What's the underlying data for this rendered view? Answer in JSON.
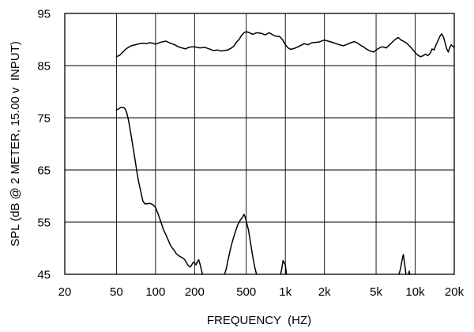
{
  "chart_data": {
    "type": "line",
    "title": "",
    "xlabel": "FREQUENCY  (HZ)",
    "ylabel": "SPL (dB @ 2 METER, 15.00 v  INPUT)",
    "x_scale": "log",
    "xlim": [
      20,
      20000
    ],
    "ylim": [
      45,
      95
    ],
    "grid": true,
    "legend": "none",
    "x_ticks": [
      {
        "value": 20,
        "label": "20"
      },
      {
        "value": 50,
        "label": "50"
      },
      {
        "value": 100,
        "label": "100"
      },
      {
        "value": 200,
        "label": "200"
      },
      {
        "value": 500,
        "label": "500"
      },
      {
        "value": 1000,
        "label": "1k"
      },
      {
        "value": 2000,
        "label": "2k"
      },
      {
        "value": 5000,
        "label": "5k"
      },
      {
        "value": 10000,
        "label": "10k"
      },
      {
        "value": 20000,
        "label": "20k"
      }
    ],
    "y_ticks": [
      {
        "value": 45,
        "label": "45"
      },
      {
        "value": 55,
        "label": "55"
      },
      {
        "value": 65,
        "label": "65"
      },
      {
        "value": 75,
        "label": "75"
      },
      {
        "value": 85,
        "label": "85"
      },
      {
        "value": 95,
        "label": "95"
      }
    ],
    "line_color": "#000000",
    "series": [
      {
        "points": [
          [
            50,
            86.7
          ],
          [
            53,
            87.0
          ],
          [
            56,
            87.6
          ],
          [
            60,
            88.3
          ],
          [
            65,
            88.8
          ],
          [
            70,
            89.0
          ],
          [
            75,
            89.2
          ],
          [
            80,
            89.3
          ],
          [
            85,
            89.2
          ],
          [
            90,
            89.4
          ],
          [
            95,
            89.3
          ],
          [
            100,
            89.1
          ],
          [
            110,
            89.5
          ],
          [
            120,
            89.7
          ],
          [
            130,
            89.3
          ],
          [
            140,
            89.0
          ],
          [
            150,
            88.6
          ],
          [
            160,
            88.4
          ],
          [
            170,
            88.2
          ],
          [
            180,
            88.5
          ],
          [
            190,
            88.6
          ],
          [
            200,
            88.6
          ],
          [
            220,
            88.4
          ],
          [
            240,
            88.5
          ],
          [
            260,
            88.2
          ],
          [
            280,
            87.9
          ],
          [
            300,
            88.0
          ],
          [
            320,
            87.8
          ],
          [
            340,
            87.9
          ],
          [
            360,
            88.0
          ],
          [
            380,
            88.3
          ],
          [
            400,
            88.7
          ],
          [
            420,
            89.5
          ],
          [
            440,
            90.0
          ],
          [
            460,
            90.8
          ],
          [
            480,
            91.3
          ],
          [
            500,
            91.5
          ],
          [
            530,
            91.3
          ],
          [
            560,
            91.0
          ],
          [
            600,
            91.3
          ],
          [
            650,
            91.2
          ],
          [
            700,
            90.9
          ],
          [
            750,
            91.3
          ],
          [
            800,
            90.9
          ],
          [
            850,
            90.6
          ],
          [
            900,
            90.6
          ],
          [
            950,
            90.0
          ],
          [
            1000,
            89.0
          ],
          [
            1050,
            88.4
          ],
          [
            1100,
            88.1
          ],
          [
            1200,
            88.4
          ],
          [
            1300,
            88.8
          ],
          [
            1400,
            89.2
          ],
          [
            1500,
            89.0
          ],
          [
            1600,
            89.4
          ],
          [
            1800,
            89.5
          ],
          [
            2000,
            89.9
          ],
          [
            2200,
            89.6
          ],
          [
            2400,
            89.3
          ],
          [
            2600,
            89.0
          ],
          [
            2800,
            88.8
          ],
          [
            3000,
            89.1
          ],
          [
            3200,
            89.4
          ],
          [
            3400,
            89.6
          ],
          [
            3600,
            89.3
          ],
          [
            3800,
            88.9
          ],
          [
            4000,
            88.6
          ],
          [
            4200,
            88.2
          ],
          [
            4500,
            87.8
          ],
          [
            4800,
            87.6
          ],
          [
            5000,
            88.0
          ],
          [
            5300,
            88.4
          ],
          [
            5600,
            88.6
          ],
          [
            6000,
            88.4
          ],
          [
            6300,
            88.9
          ],
          [
            6600,
            89.4
          ],
          [
            7000,
            90.0
          ],
          [
            7400,
            90.4
          ],
          [
            7800,
            89.9
          ],
          [
            8200,
            89.6
          ],
          [
            8600,
            89.3
          ],
          [
            9000,
            88.8
          ],
          [
            9500,
            88.2
          ],
          [
            10000,
            87.5
          ],
          [
            10500,
            87.0
          ],
          [
            11000,
            86.7
          ],
          [
            11500,
            86.9
          ],
          [
            12000,
            87.2
          ],
          [
            12500,
            86.9
          ],
          [
            13000,
            87.3
          ],
          [
            13500,
            88.2
          ],
          [
            14000,
            88.0
          ],
          [
            14500,
            89.0
          ],
          [
            15000,
            89.8
          ],
          [
            15500,
            90.6
          ],
          [
            16000,
            91.1
          ],
          [
            16500,
            90.5
          ],
          [
            17000,
            89.4
          ],
          [
            17500,
            88.2
          ],
          [
            18000,
            87.6
          ],
          [
            18500,
            88.5
          ],
          [
            19000,
            89.0
          ],
          [
            19500,
            88.7
          ],
          [
            20000,
            88.5
          ]
        ]
      },
      {
        "points": [
          [
            50,
            76.5
          ],
          [
            52,
            76.7
          ],
          [
            54,
            77.0
          ],
          [
            56,
            77.0
          ],
          [
            58,
            76.8
          ],
          [
            60,
            76.0
          ],
          [
            62,
            74.5
          ],
          [
            64,
            72.5
          ],
          [
            66,
            70.5
          ],
          [
            68,
            68.5
          ],
          [
            70,
            66.5
          ],
          [
            72,
            64.5
          ],
          [
            74,
            62.8
          ],
          [
            76,
            61.5
          ],
          [
            78,
            60.2
          ],
          [
            80,
            59.0
          ],
          [
            83,
            58.5
          ],
          [
            86,
            58.5
          ],
          [
            90,
            58.6
          ],
          [
            95,
            58.4
          ],
          [
            100,
            57.8
          ],
          [
            105,
            56.5
          ],
          [
            110,
            55.0
          ],
          [
            115,
            53.6
          ],
          [
            120,
            52.6
          ],
          [
            125,
            51.6
          ],
          [
            130,
            50.6
          ],
          [
            135,
            50.0
          ],
          [
            140,
            49.5
          ],
          [
            145,
            48.9
          ],
          [
            150,
            48.6
          ],
          [
            155,
            48.4
          ],
          [
            160,
            48.2
          ],
          [
            165,
            48.0
          ],
          [
            170,
            47.6
          ],
          [
            175,
            47.0
          ],
          [
            180,
            46.6
          ],
          [
            185,
            46.4
          ],
          [
            190,
            46.8
          ],
          [
            195,
            47.3
          ],
          [
            200,
            47.2
          ],
          [
            205,
            46.8
          ],
          [
            210,
            47.4
          ],
          [
            215,
            47.8
          ],
          [
            220,
            47.0
          ],
          [
            225,
            46.0
          ],
          [
            230,
            45.0
          ]
        ]
      },
      {
        "points": [
          [
            340,
            45.0
          ],
          [
            350,
            46.0
          ],
          [
            360,
            47.5
          ],
          [
            375,
            49.5
          ],
          [
            390,
            51.2
          ],
          [
            410,
            53.0
          ],
          [
            430,
            54.5
          ],
          [
            450,
            55.4
          ],
          [
            470,
            56.0
          ],
          [
            480,
            56.5
          ],
          [
            490,
            56.0
          ],
          [
            500,
            55.2
          ],
          [
            520,
            53.5
          ],
          [
            540,
            51.0
          ],
          [
            560,
            48.5
          ],
          [
            580,
            46.5
          ],
          [
            600,
            45.0
          ]
        ]
      },
      {
        "points": [
          [
            920,
            45.0
          ],
          [
            940,
            46.2
          ],
          [
            960,
            47.6
          ],
          [
            980,
            47.2
          ],
          [
            1000,
            46.8
          ],
          [
            1020,
            45.0
          ]
        ]
      },
      {
        "points": [
          [
            7500,
            45.0
          ],
          [
            7700,
            46.0
          ],
          [
            7900,
            47.5
          ],
          [
            8100,
            48.8
          ],
          [
            8300,
            47.0
          ],
          [
            8500,
            45.0
          ]
        ]
      },
      {
        "points": [
          [
            8900,
            45.0
          ],
          [
            9000,
            45.6
          ],
          [
            9100,
            45.0
          ]
        ]
      }
    ]
  }
}
